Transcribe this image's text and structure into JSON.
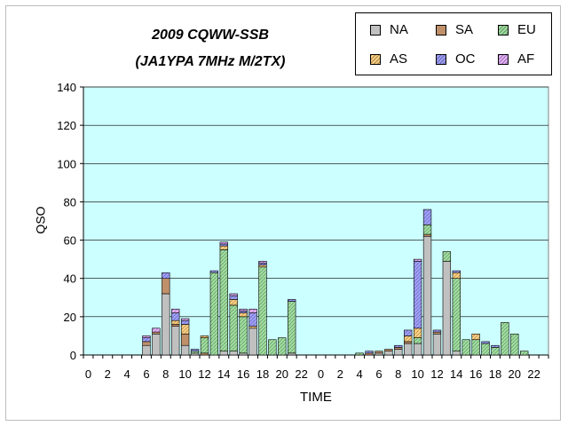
{
  "chart_data": {
    "type": "bar",
    "stacked": true,
    "title": "2009 CQWW-SSB",
    "subtitle": "(JA1YPA  7MHz  M/2TX)",
    "xlabel": "TIME",
    "ylabel": "QSO",
    "ylim": [
      0,
      140
    ],
    "yticks": [
      0,
      20,
      40,
      60,
      80,
      100,
      120,
      140
    ],
    "grid": true,
    "legend_position": "top-right",
    "categories": [
      "0",
      "1",
      "2",
      "3",
      "4",
      "5",
      "6",
      "7",
      "8",
      "9",
      "10",
      "11",
      "12",
      "13",
      "14",
      "15",
      "16",
      "17",
      "18",
      "19",
      "20",
      "21",
      "22",
      "23",
      "0",
      "1",
      "2",
      "3",
      "4",
      "5",
      "6",
      "7",
      "8",
      "9",
      "10",
      "11",
      "12",
      "13",
      "14",
      "15",
      "16",
      "17",
      "18",
      "19",
      "20",
      "21",
      "22",
      "23"
    ],
    "series": [
      {
        "name": "NA",
        "color": "#c0c0c0",
        "values": [
          0,
          0,
          0,
          0,
          0,
          0,
          5,
          11,
          32,
          15,
          5,
          1,
          0,
          0,
          2,
          2,
          1,
          14,
          0,
          0,
          0,
          1,
          0,
          0,
          0,
          0,
          0,
          0,
          0,
          0,
          1,
          2,
          3,
          6,
          6,
          62,
          11,
          49,
          2,
          0,
          0,
          0,
          0,
          0,
          0,
          0,
          0,
          0
        ]
      },
      {
        "name": "SA",
        "color": "#c0906a",
        "values": [
          0,
          0,
          0,
          0,
          0,
          0,
          2,
          1,
          8,
          1,
          6,
          0,
          1,
          0,
          0,
          0,
          0,
          0,
          0,
          0,
          0,
          0,
          0,
          0,
          0,
          0,
          0,
          0,
          0,
          1,
          1,
          1,
          1,
          1,
          0,
          1,
          1,
          0,
          0,
          0,
          0,
          0,
          0,
          0,
          0,
          0,
          0,
          0
        ]
      },
      {
        "name": "EU",
        "color": "#9fdf9f",
        "values": [
          0,
          0,
          0,
          0,
          0,
          0,
          0,
          0,
          0,
          0,
          0,
          1,
          8,
          43,
          53,
          24,
          19,
          0,
          46,
          8,
          9,
          27,
          0,
          0,
          0,
          0,
          0,
          0,
          1,
          0,
          0,
          0,
          0,
          0,
          3,
          5,
          0,
          5,
          38,
          8,
          8,
          6,
          4,
          17,
          11,
          2,
          0,
          0
        ]
      },
      {
        "name": "AS",
        "color": "#ffd080",
        "values": [
          0,
          0,
          0,
          0,
          0,
          0,
          0,
          0,
          0,
          2,
          5,
          0,
          1,
          0,
          2,
          3,
          2,
          1,
          1,
          0,
          0,
          0,
          0,
          0,
          0,
          0,
          0,
          0,
          0,
          0,
          0,
          0,
          0,
          3,
          5,
          0,
          0,
          0,
          3,
          0,
          3,
          0,
          0,
          0,
          0,
          0,
          0,
          0
        ]
      },
      {
        "name": "OC",
        "color": "#a0a0ff",
        "values": [
          0,
          0,
          0,
          0,
          0,
          0,
          2,
          0,
          3,
          4,
          2,
          1,
          0,
          1,
          1,
          2,
          1,
          7,
          1,
          0,
          0,
          1,
          0,
          0,
          0,
          0,
          0,
          0,
          0,
          1,
          0,
          0,
          1,
          3,
          35,
          8,
          1,
          0,
          1,
          0,
          0,
          1,
          1,
          0,
          0,
          0,
          0,
          0
        ]
      },
      {
        "name": "AF",
        "color": "#e8b0ff",
        "values": [
          0,
          0,
          0,
          0,
          0,
          0,
          1,
          2,
          0,
          2,
          1,
          0,
          0,
          0,
          1,
          1,
          1,
          2,
          1,
          0,
          0,
          0,
          0,
          0,
          0,
          0,
          0,
          0,
          0,
          0,
          0,
          0,
          0,
          0,
          1,
          0,
          0,
          0,
          0,
          0,
          0,
          0,
          0,
          0,
          0,
          0,
          0,
          0
        ]
      }
    ],
    "xtick_labels": [
      "0",
      "2",
      "4",
      "6",
      "8",
      "10",
      "12",
      "14",
      "16",
      "18",
      "20",
      "22",
      "0",
      "2",
      "4",
      "6",
      "8",
      "10",
      "12",
      "14",
      "16",
      "18",
      "20",
      "22"
    ]
  }
}
